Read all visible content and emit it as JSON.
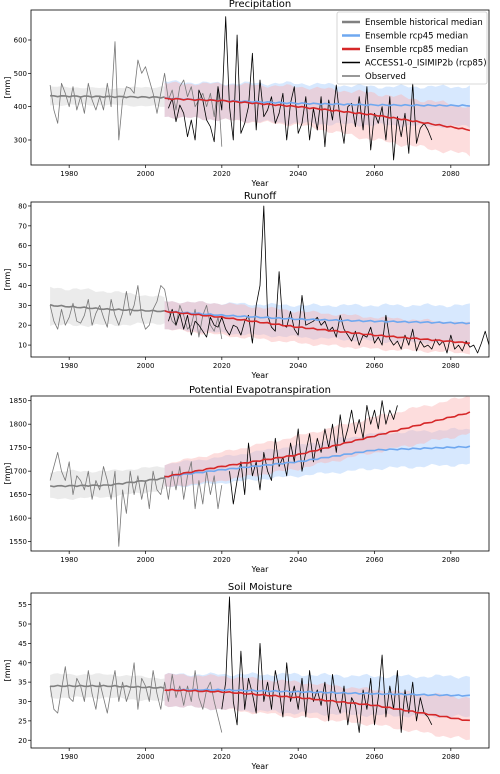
{
  "legend": {
    "items": [
      {
        "label": "Ensemble historical median",
        "color": "#808080",
        "width": 2
      },
      {
        "label": "Ensemble rcp45 median",
        "color": "#6fa8f0",
        "width": 2
      },
      {
        "label": "Ensemble rcp85 median",
        "color": "#d62728",
        "width": 2
      },
      {
        "label": "ACCESS1-0_ISIMIP2b (rcp85)",
        "color": "#000000",
        "width": 1
      },
      {
        "label": "Observed",
        "color": "#777777",
        "width": 1
      }
    ]
  },
  "colors": {
    "hist_band": "#d3d3d3",
    "rcp45_band": "#a6cdfc",
    "rcp85_band": "#fbb4b4"
  },
  "chart_data": [
    {
      "type": "line",
      "title": "Precipitation",
      "xlabel": "Year",
      "ylabel": "[mm]",
      "xlim": [
        1970,
        2090
      ],
      "ylim": [
        225,
        690
      ],
      "xticks": [
        1980,
        2000,
        2020,
        2040,
        2060,
        2080
      ],
      "yticks": [
        300,
        400,
        500,
        600
      ],
      "legend_position": "top-right",
      "hist": {
        "x": [
          1975,
          1990,
          2005
        ],
        "median": [
          432,
          430,
          428
        ],
        "lower": [
          405,
          405,
          400
        ],
        "upper": [
          460,
          455,
          460
        ]
      },
      "rcp45": {
        "x": [
          2005,
          2020,
          2040,
          2060,
          2085
        ],
        "median": [
          425,
          418,
          410,
          405,
          403
        ],
        "lower": [
          370,
          360,
          350,
          345,
          340
        ],
        "upper": [
          475,
          470,
          470,
          460,
          460
        ]
      },
      "rcp85": {
        "x": [
          2005,
          2020,
          2040,
          2060,
          2085
        ],
        "median": [
          424,
          418,
          400,
          375,
          330
        ],
        "lower": [
          370,
          360,
          345,
          300,
          255
        ],
        "upper": [
          470,
          468,
          460,
          440,
          400
        ]
      },
      "access_x0": 2006,
      "access": [
        395,
        425,
        355,
        405,
        380,
        310,
        360,
        300,
        450,
        420,
        360,
        340,
        295,
        460,
        390,
        670,
        400,
        300,
        615,
        320,
        350,
        400,
        560,
        330,
        480,
        370,
        390,
        430,
        350,
        380,
        440,
        300,
        410,
        460,
        320,
        350,
        430,
        300,
        395,
        330,
        430,
        280,
        420,
        360,
        465,
        360,
        290,
        400,
        410,
        340,
        430,
        330,
        460,
        270,
        380,
        350,
        400,
        300,
        430,
        240,
        370,
        310,
        380,
        260,
        470,
        290,
        335,
        350,
        330,
        300
      ],
      "obs_x0": 1975,
      "obs": [
        465,
        390,
        350,
        470,
        440,
        400,
        460,
        390,
        430,
        380,
        470,
        420,
        390,
        430,
        390,
        470,
        400,
        595,
        300,
        420,
        460,
        455,
        440,
        540,
        500,
        520,
        480,
        440,
        380,
        440,
        500,
        420,
        450,
        390,
        460,
        480,
        430,
        460,
        400,
        420,
        440,
        400,
        440,
        370,
        460,
        280
      ]
    },
    {
      "type": "line",
      "title": "Runoff",
      "xlabel": "Year",
      "ylabel": "[mm]",
      "xlim": [
        1970,
        2090
      ],
      "ylim": [
        4,
        82
      ],
      "xticks": [
        1980,
        2000,
        2020,
        2040,
        2060,
        2080
      ],
      "yticks": [
        10,
        20,
        30,
        40,
        50,
        60,
        70,
        80
      ],
      "hist": {
        "x": [
          1975,
          1990,
          2005
        ],
        "median": [
          30,
          28,
          27
        ],
        "lower": [
          20,
          20,
          21
        ],
        "upper": [
          39,
          37,
          34
        ]
      },
      "rcp45": {
        "x": [
          2005,
          2020,
          2040,
          2060,
          2085
        ],
        "median": [
          27,
          25,
          23,
          22,
          21
        ],
        "lower": [
          18,
          16,
          14,
          12,
          11
        ],
        "upper": [
          32,
          31,
          30,
          30,
          30
        ]
      },
      "rcp85": {
        "x": [
          2005,
          2020,
          2040,
          2060,
          2085
        ],
        "median": [
          27,
          24,
          19,
          15,
          11
        ],
        "lower": [
          18,
          15,
          11,
          8,
          6
        ],
        "upper": [
          32,
          31,
          27,
          24,
          21
        ]
      },
      "access_x0": 2006,
      "access": [
        22,
        28,
        20,
        26,
        18,
        25,
        15,
        22,
        20,
        17,
        14,
        24,
        20,
        19,
        24,
        18,
        15,
        20,
        19,
        15,
        22,
        25,
        11,
        30,
        40,
        80,
        25,
        19,
        17,
        47,
        20,
        19,
        27,
        18,
        15,
        35,
        20,
        21,
        22,
        24,
        20,
        22,
        17,
        19,
        14,
        25,
        18,
        15,
        12,
        17,
        10,
        15,
        14,
        19,
        11,
        14,
        10,
        25,
        13,
        10,
        12,
        8,
        15,
        10,
        18,
        7,
        12,
        9,
        10,
        8,
        13,
        10,
        12,
        6,
        15,
        8,
        10,
        7,
        12,
        9,
        10,
        6,
        11,
        17,
        10,
        12
      ],
      "obs_x0": 1975,
      "obs": [
        30,
        22,
        18,
        28,
        20,
        24,
        31,
        22,
        21,
        25,
        33,
        20,
        26,
        30,
        24,
        19,
        33,
        25,
        20,
        26,
        37,
        25,
        30,
        40,
        24,
        18,
        20,
        28,
        32,
        40,
        38,
        28,
        22,
        20,
        30,
        25,
        18,
        20,
        28,
        14,
        25,
        30,
        20,
        17,
        24,
        13
      ]
    },
    {
      "type": "line",
      "title": "Potential Evapotranspiration",
      "xlabel": "Year",
      "ylabel": "[mm]",
      "xlim": [
        1970,
        2090
      ],
      "ylim": [
        1530,
        1860
      ],
      "xticks": [
        1980,
        2000,
        2020,
        2040,
        2060,
        2080
      ],
      "yticks": [
        1550,
        1600,
        1650,
        1700,
        1750,
        1800,
        1850
      ],
      "hist": {
        "x": [
          1975,
          1990,
          2005
        ],
        "median": [
          1668,
          1670,
          1685
        ],
        "lower": [
          1640,
          1645,
          1660
        ],
        "upper": [
          1700,
          1700,
          1710
        ]
      },
      "rcp45": {
        "x": [
          2005,
          2020,
          2040,
          2060,
          2085
        ],
        "median": [
          1688,
          1703,
          1720,
          1745,
          1752
        ],
        "lower": [
          1665,
          1675,
          1690,
          1705,
          1715
        ],
        "upper": [
          1715,
          1730,
          1755,
          1780,
          1790
        ]
      },
      "rcp85": {
        "x": [
          2005,
          2020,
          2040,
          2060,
          2085
        ],
        "median": [
          1688,
          1710,
          1735,
          1775,
          1825
        ],
        "lower": [
          1665,
          1680,
          1705,
          1740,
          1780
        ],
        "upper": [
          1715,
          1740,
          1775,
          1815,
          1860
        ]
      },
      "access_x0": 2022,
      "access": [
        1700,
        1630,
        1680,
        1720,
        1650,
        1760,
        1690,
        1720,
        1660,
        1740,
        1700,
        1680,
        1770,
        1710,
        1730,
        1690,
        1760,
        1720,
        1790,
        1700,
        1740,
        1780,
        1720,
        1770,
        1740,
        1790,
        1750,
        1800,
        1740,
        1820,
        1760,
        1790,
        1830,
        1780,
        1810,
        1770,
        1840,
        1800,
        1830,
        1790,
        1850,
        1800,
        1830,
        1810,
        1840
      ],
      "obs_x0": 1975,
      "obs": [
        1680,
        1710,
        1740,
        1700,
        1680,
        1720,
        1650,
        1690,
        1680,
        1660,
        1700,
        1640,
        1680,
        1660,
        1710,
        1680,
        1640,
        1700,
        1540,
        1660,
        1610,
        1700,
        1650,
        1690,
        1640,
        1680,
        1620,
        1700,
        1660,
        1650,
        1690,
        1640,
        1700,
        1660,
        1710,
        1640,
        1690,
        1720,
        1620,
        1680,
        1630,
        1700,
        1650,
        1690,
        1620,
        1670
      ]
    },
    {
      "type": "line",
      "title": "Soil Moisture",
      "xlabel": "Year",
      "ylabel": "[mm]",
      "xlim": [
        1970,
        2090
      ],
      "ylim": [
        18,
        58
      ],
      "xticks": [
        1980,
        2000,
        2020,
        2040,
        2060,
        2080
      ],
      "yticks": [
        20,
        25,
        30,
        35,
        40,
        45,
        50,
        55
      ],
      "hist": {
        "x": [
          1975,
          1990,
          2005
        ],
        "median": [
          34,
          34,
          33.5
        ],
        "lower": [
          31,
          31,
          30
        ],
        "upper": [
          37,
          37,
          36
        ]
      },
      "rcp45": {
        "x": [
          2005,
          2020,
          2040,
          2060,
          2085
        ],
        "median": [
          33,
          33,
          32.5,
          32,
          31.5
        ],
        "lower": [
          29,
          28,
          27,
          26.5,
          26
        ],
        "upper": [
          37,
          37,
          37,
          36.5,
          36.5
        ]
      },
      "rcp85": {
        "x": [
          2005,
          2020,
          2040,
          2060,
          2085
        ],
        "median": [
          33,
          32.5,
          31,
          29,
          25
        ],
        "lower": [
          29,
          28,
          26,
          24,
          20
        ],
        "upper": [
          37,
          36.5,
          35,
          33,
          31
        ]
      },
      "access_x0": 2020,
      "access": [
        28,
        35,
        57,
        30,
        24,
        43,
        28,
        36,
        32,
        27,
        45,
        30,
        35,
        28,
        38,
        33,
        26,
        40,
        30,
        34,
        28,
        36,
        26,
        38,
        30,
        33,
        29,
        35,
        25,
        37,
        30,
        27,
        34,
        24,
        31,
        29,
        22,
        33,
        28,
        36,
        24,
        31,
        42,
        26,
        34,
        28,
        38,
        22,
        33,
        27,
        35,
        25,
        31,
        27,
        26,
        24
      ],
      "obs_x0": 1975,
      "obs": [
        34,
        28,
        27,
        33,
        39,
        31,
        30,
        36,
        34,
        30,
        38,
        32,
        28,
        35,
        31,
        27,
        33,
        38,
        30,
        35,
        30,
        33,
        40,
        28,
        36,
        34,
        30,
        38,
        32,
        28,
        35,
        30,
        37,
        31,
        34,
        29,
        34,
        30,
        38,
        31,
        28,
        33,
        35,
        30,
        26,
        22
      ]
    }
  ]
}
